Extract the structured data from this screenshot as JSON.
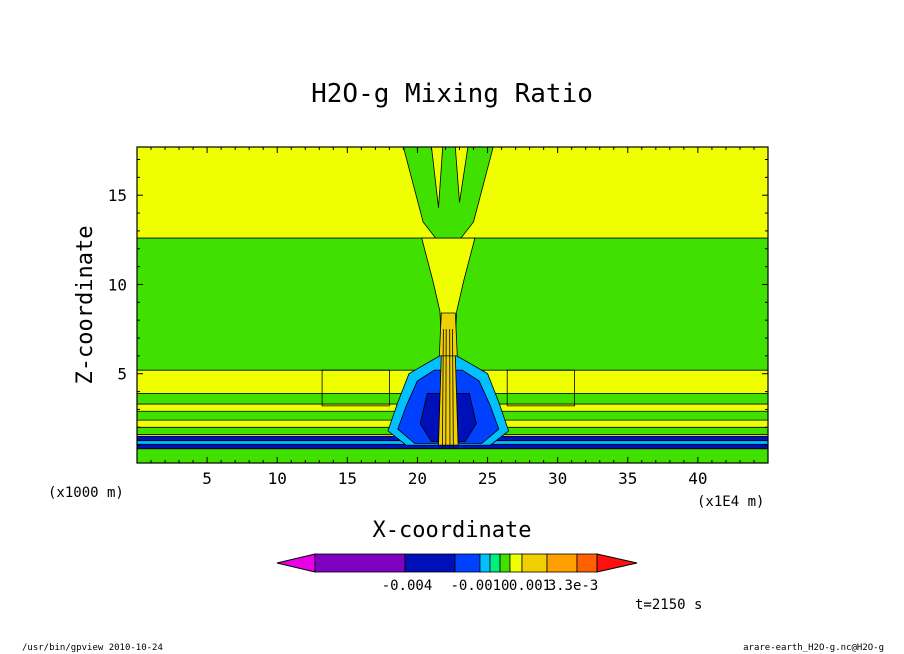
{
  "chart_data": {
    "type": "contour",
    "title": "H2O-g Mixing Ratio",
    "xlabel": "X-coordinate",
    "ylabel": "Z-coordinate",
    "x_unit": "(x1E4 m)",
    "y_unit": "(x1000 m)",
    "xlim": [
      0,
      45
    ],
    "ylim": [
      0,
      17.7
    ],
    "x_ticks": [
      "5",
      "10",
      "15",
      "20",
      "25",
      "30",
      "35",
      "40"
    ],
    "y_ticks": [
      "5",
      "10",
      "15"
    ],
    "x_tick_values": [
      5,
      10,
      15,
      20,
      25,
      30,
      35,
      40
    ],
    "y_tick_values": [
      5,
      10,
      15
    ],
    "time_label": "t=2150 s",
    "colorbar": {
      "colors": [
        "#e800e8",
        "#8000c0",
        "#0010b8",
        "#0040ff",
        "#00c0ff",
        "#00f080",
        "#40e000",
        "#f0ff00",
        "#f0d000",
        "#ffa000",
        "#ff6000",
        "#ff1010"
      ],
      "tick_labels": [
        "-0.004",
        "-0.0010",
        "0.001",
        "3.3e-3"
      ]
    },
    "layers": [
      {
        "name": "yellow-background",
        "z_range": [
          0,
          17.7
        ],
        "color": "#f0ff00"
      },
      {
        "name": "green-midlevel-band",
        "z_range": [
          5.2,
          12.6
        ],
        "color": "#40e000"
      },
      {
        "name": "green-low-band-1",
        "z_range": [
          3.3,
          3.9
        ],
        "color": "#40e000"
      },
      {
        "name": "green-low-band-2",
        "z_range": [
          2.4,
          2.9
        ],
        "color": "#40e000"
      },
      {
        "name": "green-low-band-3",
        "z_range": [
          1.6,
          2.0
        ],
        "color": "#40e000"
      },
      {
        "name": "blue-surface-band",
        "z_range": [
          0.8,
          1.5
        ],
        "color": "#0010b8"
      },
      {
        "name": "cyan-surface-lines",
        "z_range": [
          1.05,
          1.25
        ],
        "color": "#00c0ff"
      },
      {
        "name": "green-surface",
        "z_range": [
          0,
          0.8
        ],
        "color": "#40e000"
      }
    ],
    "plume_center_x": 22.2
  },
  "footer": {
    "left": "/usr/bin/gpview  2010-10-24",
    "right": "arare-earth_H2O-g.nc@H2O-g"
  }
}
